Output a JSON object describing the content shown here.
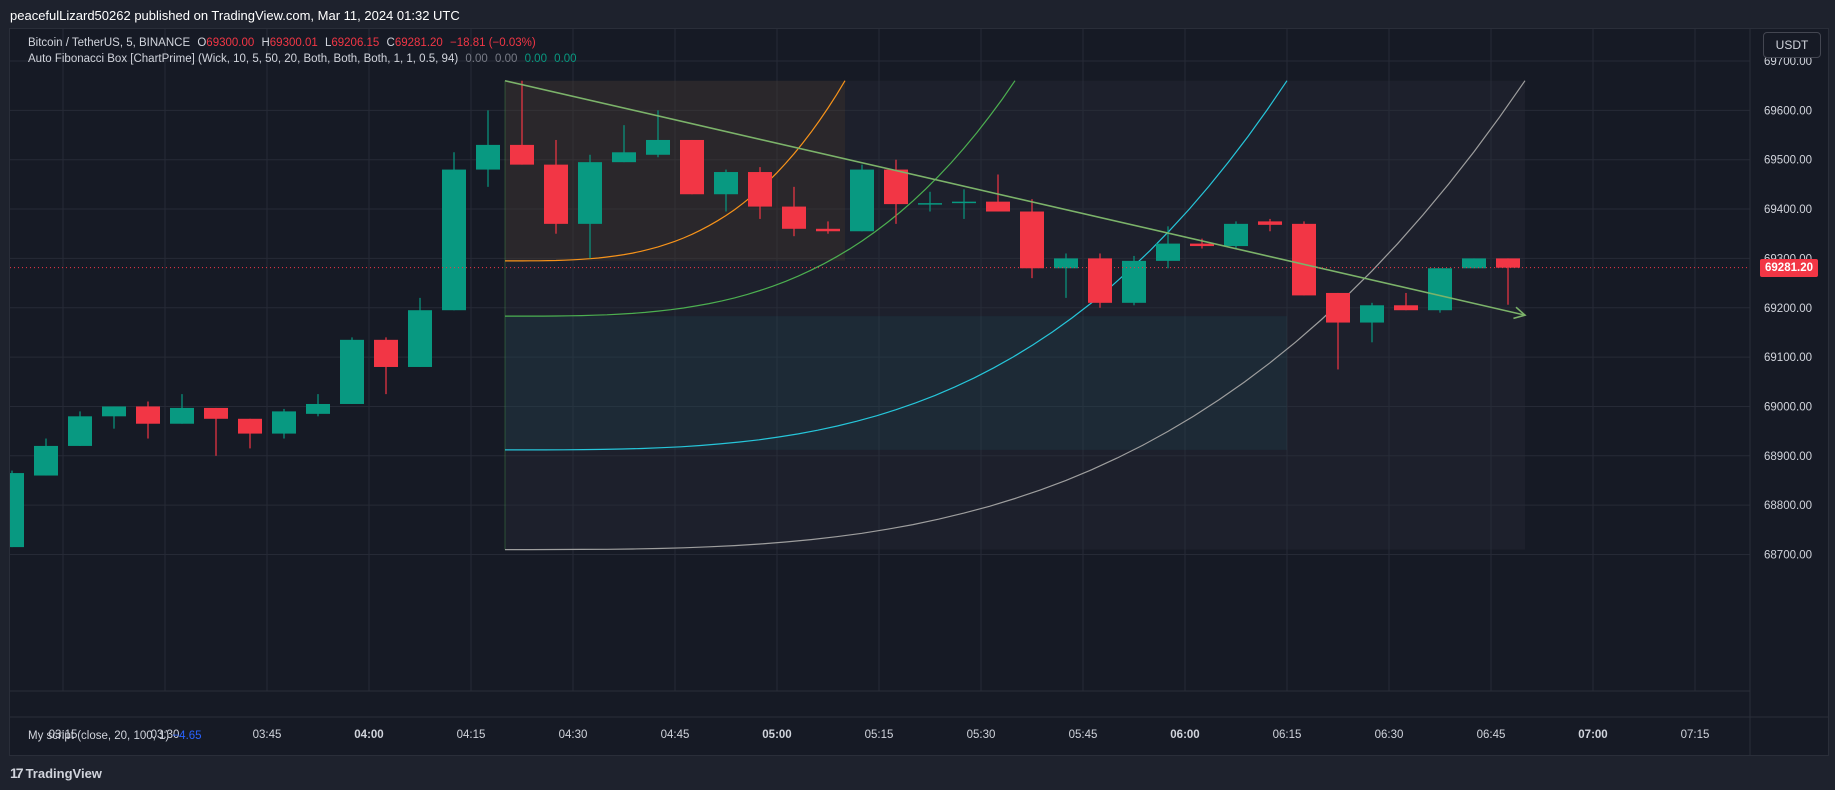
{
  "header": {
    "publisher": "peacefulLizard50262 published on TradingView.com, Mar 11, 2024 01:32 UTC"
  },
  "legend": {
    "symbol": "Bitcoin / TetherUS, 5, BINANCE",
    "o_label": "O",
    "o_value": "69300.00",
    "h_label": "H",
    "h_value": "69300.01",
    "l_label": "L",
    "l_value": "69206.15",
    "c_label": "C",
    "c_value": "69281.20",
    "change": "−18.81 (−0.03%)",
    "indicator": "Auto Fibonacci Box [ChartPrime] (Wick, 10, 5, 50, 20, Both, Both, Both, 1, 1, 0.5, 94)",
    "ind_v1": "0.00",
    "ind_v2": "0.00",
    "ind_v3": "0.00",
    "ind_v4": "0.00"
  },
  "oscillator": {
    "name": "My script (close, 20, 100, 1)",
    "value": "−4.65"
  },
  "currency": "USDT",
  "last_price": "69281.20",
  "footer": {
    "brand": "TradingView",
    "brand_icon": "tradingview-logo-icon"
  },
  "colors": {
    "up": "#089981",
    "down": "#f23645",
    "trend": "#7cb36a",
    "bg": "#161a25",
    "grid": "#262a36"
  },
  "chart_data": {
    "type": "candlestick",
    "symbol": "Bitcoin / TetherUS",
    "interval": "5",
    "exchange": "BINANCE",
    "x_tick_labels": [
      "03:15",
      "03:30",
      "03:45",
      "04:00",
      "04:15",
      "04:30",
      "04:45",
      "05:00",
      "05:15",
      "05:30",
      "05:45",
      "06:00",
      "06:15",
      "06:30",
      "06:45",
      "07:00",
      "07:15"
    ],
    "x_ticks": [
      "2024-03-11 03:15",
      "2024-03-11 03:30",
      "2024-03-11 03:45",
      "2024-03-11 04:00",
      "2024-03-11 04:15",
      "2024-03-11 04:30",
      "2024-03-11 04:45",
      "2024-03-11 05:00",
      "2024-03-11 05:15",
      "2024-03-11 05:30",
      "2024-03-11 05:45",
      "2024-03-11 06:00",
      "2024-03-11 06:15",
      "2024-03-11 06:30",
      "2024-03-11 06:45",
      "2024-03-11 07:00",
      "2024-03-11 07:15"
    ],
    "y_tick_labels": [
      "69700.00",
      "69600.00",
      "69500.00",
      "69400.00",
      "69300.00",
      "69200.00",
      "69100.00",
      "69000.00",
      "68900.00",
      "68800.00",
      "68700.00"
    ],
    "y_ticks": [
      69700,
      69600,
      69500,
      69400,
      69300,
      69200,
      69100,
      69000,
      68900,
      68800,
      68700
    ],
    "xlim": [
      "2024-03-11 03:05",
      "2024-03-11 07:30"
    ],
    "ylim": [
      68620,
      69745
    ],
    "candles": [
      {
        "t": "2024-03-11 03:05",
        "o": 68715,
        "h": 68870,
        "l": 68715,
        "c": 68865
      },
      {
        "t": "2024-03-11 03:10",
        "o": 68860,
        "h": 68935,
        "l": 68860,
        "c": 68920
      },
      {
        "t": "2024-03-11 03:15",
        "o": 68920,
        "h": 68990,
        "l": 68920,
        "c": 68980
      },
      {
        "t": "2024-03-11 03:20",
        "o": 68980,
        "h": 69000,
        "l": 68955,
        "c": 69000
      },
      {
        "t": "2024-03-11 03:25",
        "o": 69000,
        "h": 69010,
        "l": 68935,
        "c": 68965
      },
      {
        "t": "2024-03-11 03:30",
        "o": 68965,
        "h": 69025,
        "l": 68965,
        "c": 68997
      },
      {
        "t": "2024-03-11 03:35",
        "o": 68997,
        "h": 68997,
        "l": 68900,
        "c": 68975
      },
      {
        "t": "2024-03-11 03:40",
        "o": 68975,
        "h": 68975,
        "l": 68915,
        "c": 68945
      },
      {
        "t": "2024-03-11 03:45",
        "o": 68945,
        "h": 68995,
        "l": 68935,
        "c": 68990
      },
      {
        "t": "2024-03-11 03:50",
        "o": 68985,
        "h": 69025,
        "l": 68980,
        "c": 69005
      },
      {
        "t": "2024-03-11 03:55",
        "o": 69005,
        "h": 69140,
        "l": 69005,
        "c": 69135
      },
      {
        "t": "2024-03-11 04:00",
        "o": 69135,
        "h": 69140,
        "l": 69025,
        "c": 69080
      },
      {
        "t": "2024-03-11 04:05",
        "o": 69080,
        "h": 69220,
        "l": 69080,
        "c": 69195
      },
      {
        "t": "2024-03-11 04:10",
        "o": 69195,
        "h": 69515,
        "l": 69195,
        "c": 69480
      },
      {
        "t": "2024-03-11 04:15",
        "o": 69480,
        "h": 69600,
        "l": 69445,
        "c": 69530
      },
      {
        "t": "2024-03-11 04:20",
        "o": 69530,
        "h": 69660,
        "l": 69490,
        "c": 69490
      },
      {
        "t": "2024-03-11 04:25",
        "o": 69490,
        "h": 69540,
        "l": 69350,
        "c": 69370
      },
      {
        "t": "2024-03-11 04:30",
        "o": 69370,
        "h": 69510,
        "l": 69300,
        "c": 69495
      },
      {
        "t": "2024-03-11 04:35",
        "o": 69495,
        "h": 69570,
        "l": 69495,
        "c": 69515
      },
      {
        "t": "2024-03-11 04:40",
        "o": 69510,
        "h": 69600,
        "l": 69505,
        "c": 69540
      },
      {
        "t": "2024-03-11 04:45",
        "o": 69540,
        "h": 69540,
        "l": 69430,
        "c": 69430
      },
      {
        "t": "2024-03-11 04:50",
        "o": 69430,
        "h": 69480,
        "l": 69395,
        "c": 69475
      },
      {
        "t": "2024-03-11 04:55",
        "o": 69475,
        "h": 69485,
        "l": 69380,
        "c": 69405
      },
      {
        "t": "2024-03-11 05:00",
        "o": 69405,
        "h": 69445,
        "l": 69345,
        "c": 69360
      },
      {
        "t": "2024-03-11 05:05",
        "o": 69360,
        "h": 69375,
        "l": 69350,
        "c": 69355
      },
      {
        "t": "2024-03-11 05:10",
        "o": 69355,
        "h": 69490,
        "l": 69355,
        "c": 69480
      },
      {
        "t": "2024-03-11 05:15",
        "o": 69480,
        "h": 69500,
        "l": 69370,
        "c": 69410
      },
      {
        "t": "2024-03-11 05:20",
        "o": 69410,
        "h": 69435,
        "l": 69395,
        "c": 69412
      },
      {
        "t": "2024-03-11 05:25",
        "o": 69412,
        "h": 69440,
        "l": 69380,
        "c": 69415
      },
      {
        "t": "2024-03-11 05:30",
        "o": 69415,
        "h": 69470,
        "l": 69395,
        "c": 69395
      },
      {
        "t": "2024-03-11 05:35",
        "o": 69395,
        "h": 69420,
        "l": 69260,
        "c": 69280
      },
      {
        "t": "2024-03-11 05:40",
        "o": 69280,
        "h": 69310,
        "l": 69220,
        "c": 69300
      },
      {
        "t": "2024-03-11 05:45",
        "o": 69300,
        "h": 69310,
        "l": 69200,
        "c": 69210
      },
      {
        "t": "2024-03-11 05:50",
        "o": 69210,
        "h": 69305,
        "l": 69205,
        "c": 69295
      },
      {
        "t": "2024-03-11 05:55",
        "o": 69295,
        "h": 69365,
        "l": 69280,
        "c": 69330
      },
      {
        "t": "2024-03-11 06:00",
        "o": 69330,
        "h": 69340,
        "l": 69320,
        "c": 69325
      },
      {
        "t": "2024-03-11 06:05",
        "o": 69325,
        "h": 69375,
        "l": 69320,
        "c": 69370
      },
      {
        "t": "2024-03-11 06:10",
        "o": 69375,
        "h": 69380,
        "l": 69355,
        "c": 69368
      },
      {
        "t": "2024-03-11 06:15",
        "o": 69370,
        "h": 69375,
        "l": 69225,
        "c": 69225
      },
      {
        "t": "2024-03-11 06:20",
        "o": 69230,
        "h": 69230,
        "l": 69075,
        "c": 69170
      },
      {
        "t": "2024-03-11 06:25",
        "o": 69170,
        "h": 69210,
        "l": 69130,
        "c": 69205
      },
      {
        "t": "2024-03-11 06:30",
        "o": 69205,
        "h": 69230,
        "l": 69195,
        "c": 69195
      },
      {
        "t": "2024-03-11 06:35",
        "o": 69195,
        "h": 69280,
        "l": 69190,
        "c": 69280
      },
      {
        "t": "2024-03-11 06:40",
        "o": 69280,
        "h": 69300,
        "l": 69280,
        "c": 69300
      },
      {
        "t": "2024-03-11 06:45",
        "o": 69300,
        "h": 69300.01,
        "l": 69206.15,
        "c": 69281.2
      }
    ],
    "last_price": 69281.2,
    "trend_line": [
      {
        "t": "2024-03-11 04:20",
        "y": 69660
      },
      {
        "t": "2024-03-11 06:50",
        "y": 69185
      }
    ],
    "fib_box": {
      "start": "2024-03-11 04:20",
      "end": "2024-03-11 06:50",
      "top": 69660,
      "bottom": 68710,
      "arcs": [
        {
          "base": 69295,
          "end_t": "2024-03-11 05:10",
          "color": "#f7931a"
        },
        {
          "base": 69183,
          "end_t": "2024-03-11 05:35",
          "color": "#4caf50"
        },
        {
          "base": 68912,
          "end_t": "2024-03-11 06:15",
          "color": "#26c6da"
        },
        {
          "base": 68710,
          "end_t": "2024-03-11 06:50",
          "color": "#9e9e9e"
        }
      ]
    },
    "grid": true
  }
}
